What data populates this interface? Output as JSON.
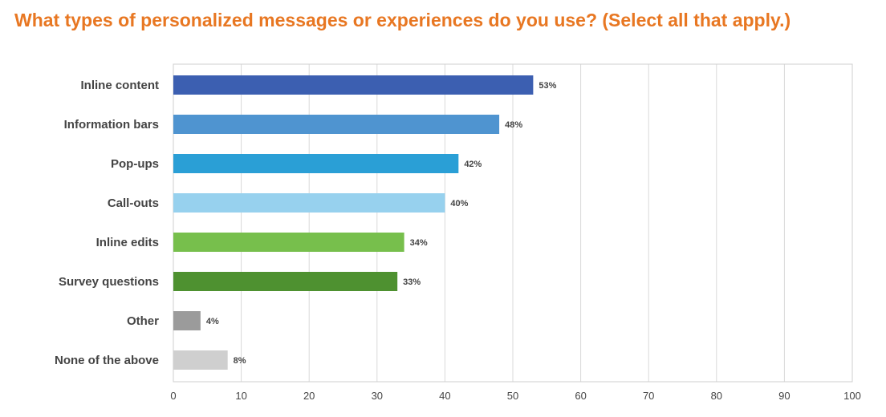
{
  "chart_data": {
    "type": "bar",
    "orientation": "horizontal",
    "title": "What types of personalized messages or experiences do you use? (Select all that apply.)",
    "xlabel": "",
    "ylabel": "",
    "categories": [
      "Inline content",
      "Information bars",
      "Pop-ups",
      "Call-outs",
      "Inline edits",
      "Survey questions",
      "Other",
      "None of the above"
    ],
    "values": [
      53,
      48,
      42,
      40,
      34,
      33,
      4,
      8
    ],
    "value_labels": [
      "53%",
      "48%",
      "42%",
      "40%",
      "34%",
      "33%",
      "4%",
      "8%"
    ],
    "bar_colors": [
      "#3c5fb1",
      "#4f94d0",
      "#2a9fd6",
      "#97d1ee",
      "#77bf4c",
      "#4e9130",
      "#9b9b9b",
      "#cfcfcf"
    ],
    "xlim": [
      0,
      100
    ],
    "xticks": [
      0,
      10,
      20,
      30,
      40,
      50,
      60,
      70,
      80,
      90,
      100
    ],
    "grid": "vertical",
    "legend": "none",
    "title_color": "#e87722"
  }
}
